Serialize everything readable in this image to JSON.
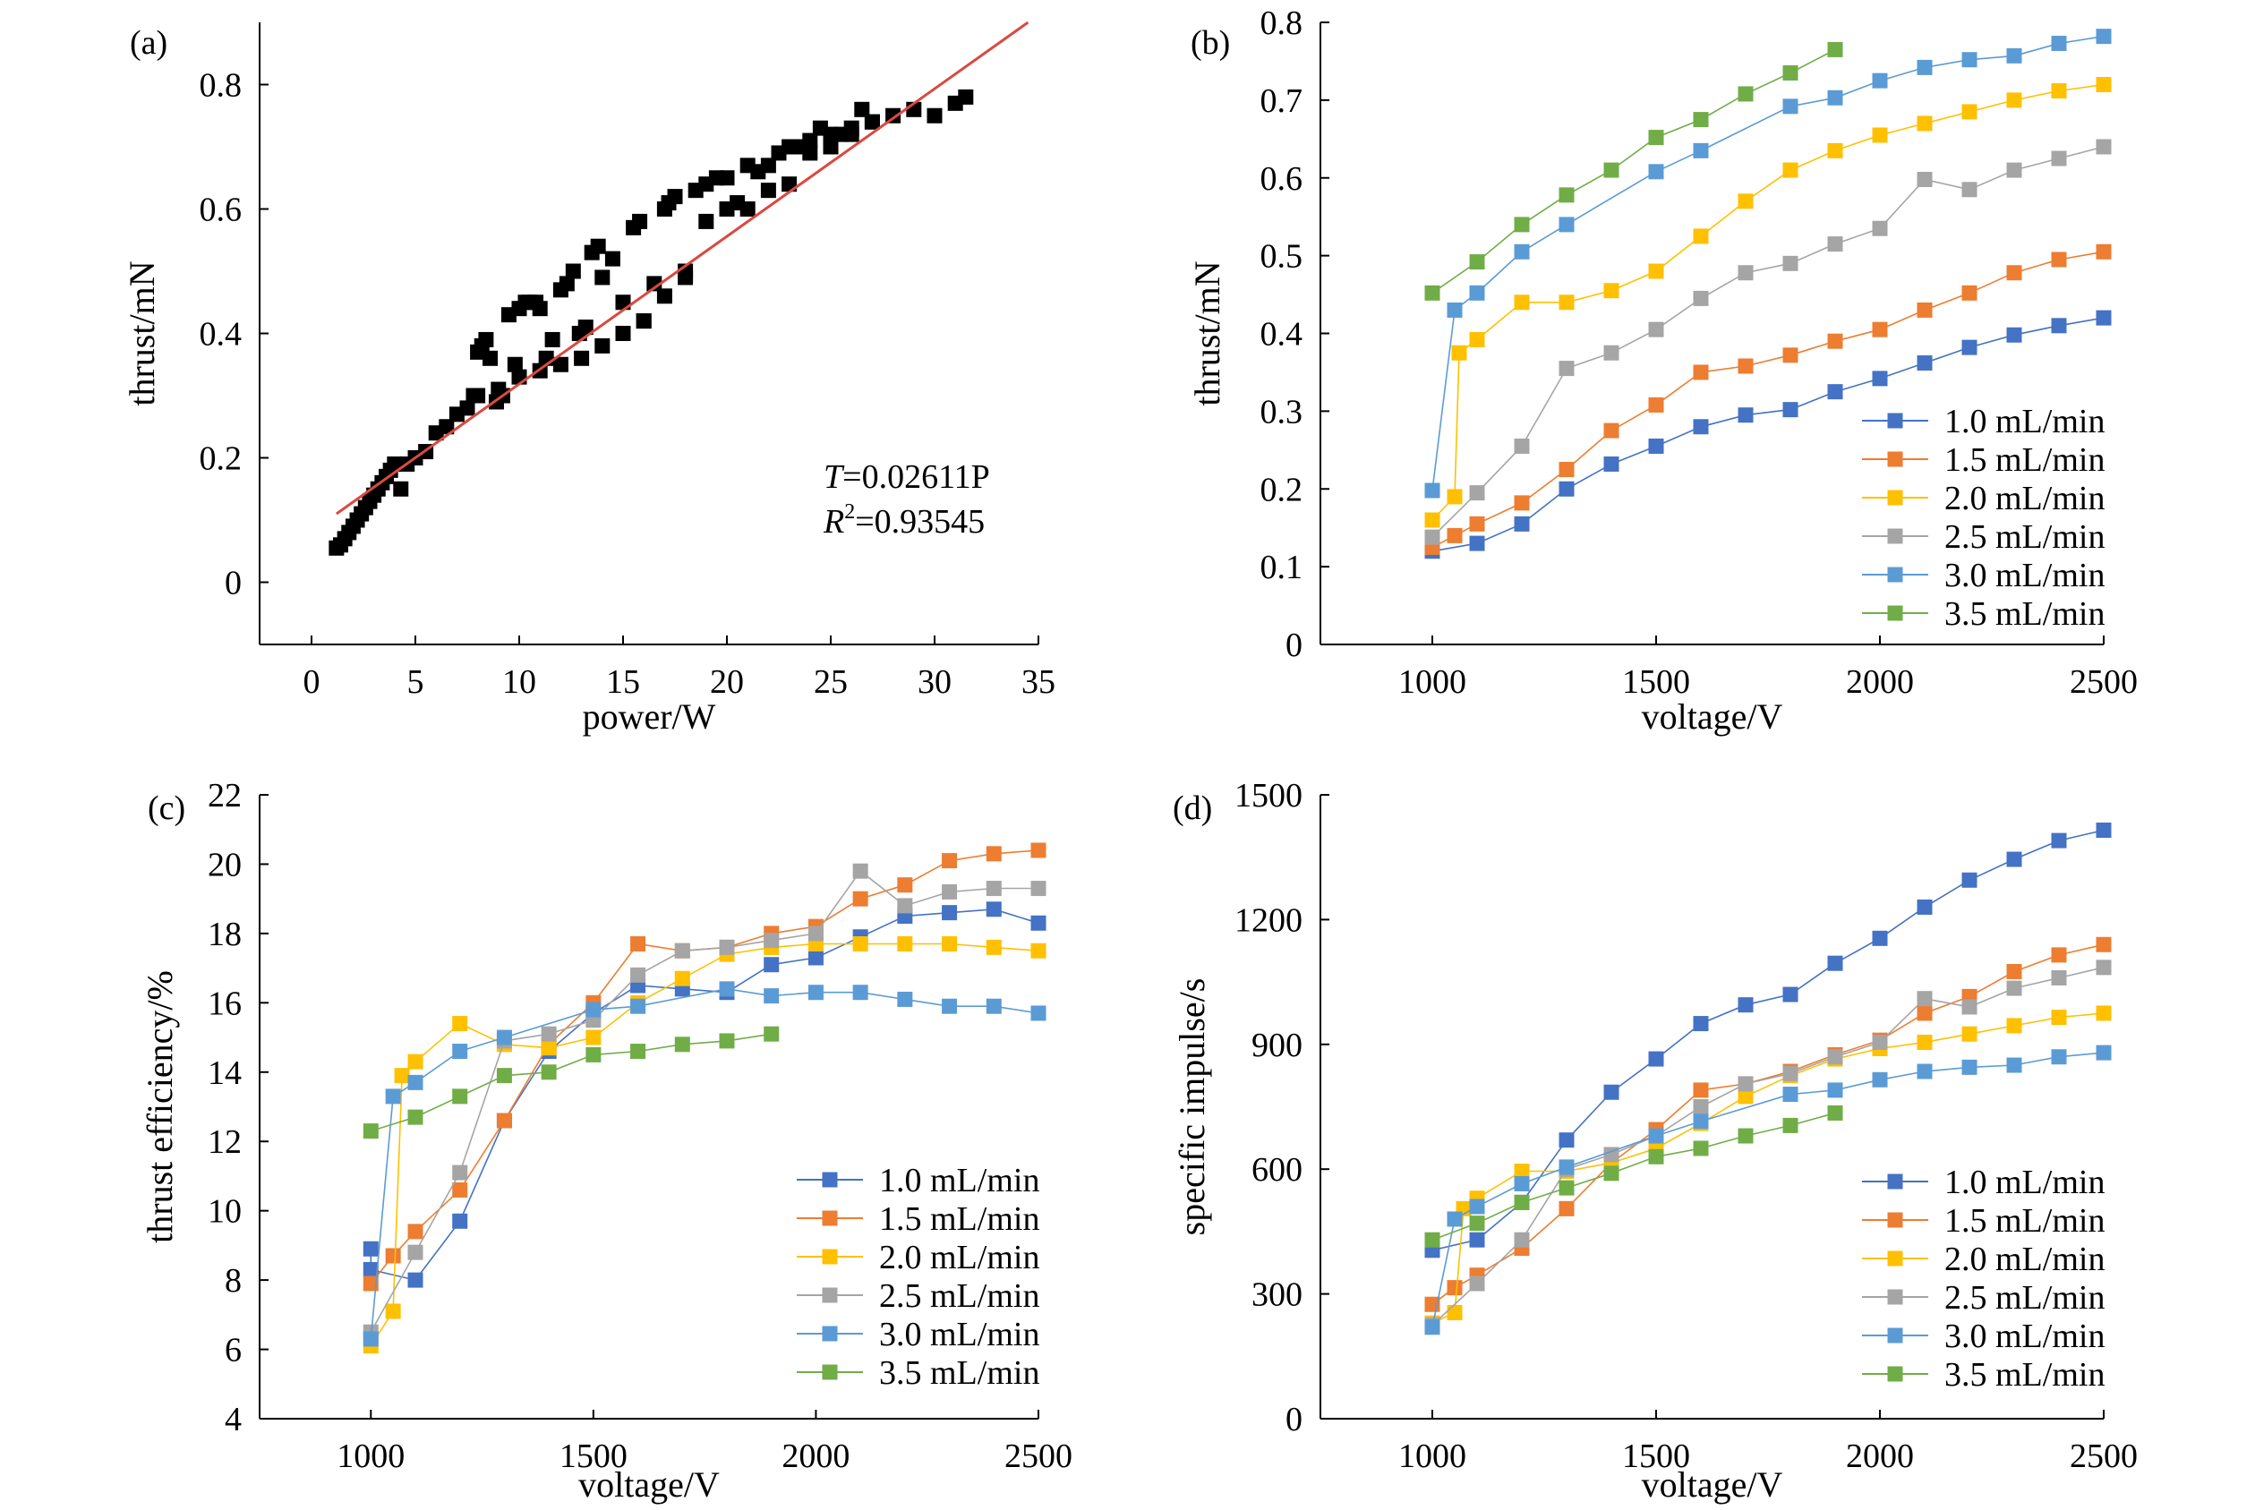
{
  "chart_data": [
    {
      "type": "scatter",
      "panel": "(a)",
      "xlabel": "power/W",
      "ylabel": "thrust/mN",
      "xlim": [
        -2.5,
        35
      ],
      "ylim": [
        -0.1,
        0.9
      ],
      "xticks": [
        0,
        5,
        10,
        15,
        20,
        25,
        30,
        35
      ],
      "yticks": [
        0,
        0.2,
        0.4,
        0.6,
        0.8
      ],
      "grid": false,
      "points": {
        "x": [
          1.2,
          1.4,
          1.6,
          1.8,
          2.0,
          2.2,
          2.4,
          2.6,
          2.8,
          3.0,
          3.2,
          3.4,
          3.6,
          3.8,
          4.0,
          4.3,
          4.6,
          5.0,
          5.5,
          6.0,
          6.5,
          7.0,
          7.5,
          7.8,
          8.0,
          8.2,
          8.4,
          8.6,
          8.9,
          9.2,
          9.5,
          9.8,
          10.0,
          10.3,
          10.5,
          10.8,
          11.0,
          11.3,
          11.6,
          12.0,
          12.3,
          12.6,
          12.9,
          13.2,
          13.5,
          13.8,
          14.0,
          14.5,
          15.0,
          15.5,
          15.8,
          16.0,
          16.5,
          17.0,
          17.2,
          17.5,
          18.0,
          18.5,
          19.0,
          19.5,
          20.0,
          20.5,
          21.0,
          21.5,
          22.0,
          22.5,
          23.0,
          23.5,
          24.0,
          24.5,
          25.0,
          25.5,
          26.0,
          26.5,
          27.0,
          28.0,
          29.0,
          30.0,
          31.0,
          31.5,
          8.0,
          9.0,
          10.0,
          11.0,
          12.0,
          13.0,
          14.0,
          15.0,
          16.0,
          17.0,
          18.0,
          19.0,
          20.0,
          21.0,
          22.0,
          23.0,
          24.0,
          25.0,
          26.0,
          27.0
        ],
        "y": [
          0.055,
          0.06,
          0.07,
          0.08,
          0.09,
          0.1,
          0.11,
          0.12,
          0.13,
          0.14,
          0.15,
          0.16,
          0.17,
          0.18,
          0.19,
          0.15,
          0.19,
          0.2,
          0.21,
          0.24,
          0.25,
          0.27,
          0.28,
          0.3,
          0.37,
          0.38,
          0.39,
          0.36,
          0.29,
          0.3,
          0.43,
          0.35,
          0.44,
          0.45,
          0.45,
          0.45,
          0.44,
          0.36,
          0.39,
          0.47,
          0.48,
          0.5,
          0.4,
          0.41,
          0.53,
          0.54,
          0.49,
          0.52,
          0.45,
          0.57,
          0.58,
          0.42,
          0.48,
          0.6,
          0.61,
          0.62,
          0.5,
          0.63,
          0.64,
          0.65,
          0.65,
          0.61,
          0.67,
          0.66,
          0.67,
          0.69,
          0.7,
          0.7,
          0.71,
          0.73,
          0.72,
          0.72,
          0.73,
          0.76,
          0.74,
          0.75,
          0.76,
          0.75,
          0.77,
          0.78,
          0.3,
          0.31,
          0.33,
          0.34,
          0.35,
          0.36,
          0.38,
          0.4,
          0.42,
          0.46,
          0.49,
          0.58,
          0.6,
          0.6,
          0.63,
          0.64,
          0.69,
          0.7,
          0.72,
          0.74
        ]
      },
      "fit": {
        "x": [
          1.2,
          34.5
        ],
        "y": [
          0.11,
          0.9
        ],
        "color": "#d94a3f"
      },
      "equation": {
        "T_sym": "T",
        "T_rest": "=0.02611P",
        "R_sym": "R",
        "R_sup": "2",
        "R_rest": "=0.93545"
      }
    },
    {
      "type": "line",
      "panel": "(b)",
      "xlabel": "voltage/V",
      "ylabel": "thrust/mN",
      "xlim": [
        750,
        2500
      ],
      "ylim": [
        0,
        0.8
      ],
      "xticks": [
        1000,
        1500,
        2000,
        2500
      ],
      "yticks": [
        0,
        0.1,
        0.2,
        0.3,
        0.4,
        0.5,
        0.6,
        0.7,
        0.8
      ],
      "grid": false,
      "legend_position": "bottom-right",
      "series": [
        {
          "name": "1.0 mL/min",
          "color": "#4472c4",
          "x": [
            1000,
            1100,
            1200,
            1300,
            1400,
            1500,
            1600,
            1700,
            1800,
            1900,
            2000,
            2100,
            2200,
            2300,
            2400,
            2500
          ],
          "y": [
            0.12,
            0.13,
            0.155,
            0.2,
            0.232,
            0.255,
            0.28,
            0.295,
            0.302,
            0.325,
            0.342,
            0.362,
            0.382,
            0.398,
            0.41,
            0.42
          ]
        },
        {
          "name": "1.5 mL/min",
          "color": "#ed7d31",
          "x": [
            1000,
            1050,
            1100,
            1200,
            1300,
            1400,
            1500,
            1600,
            1700,
            1800,
            1900,
            2000,
            2100,
            2200,
            2300,
            2400,
            2500
          ],
          "y": [
            0.125,
            0.14,
            0.155,
            0.182,
            0.225,
            0.275,
            0.308,
            0.35,
            0.358,
            0.372,
            0.39,
            0.405,
            0.43,
            0.452,
            0.478,
            0.495,
            0.505
          ]
        },
        {
          "name": "2.0 mL/min",
          "color": "#ffc000",
          "x": [
            1000,
            1050,
            1060,
            1100,
            1200,
            1300,
            1400,
            1500,
            1600,
            1700,
            1800,
            1900,
            2000,
            2100,
            2200,
            2300,
            2400,
            2500
          ],
          "y": [
            0.16,
            0.19,
            0.375,
            0.392,
            0.44,
            0.44,
            0.455,
            0.48,
            0.525,
            0.57,
            0.61,
            0.635,
            0.655,
            0.67,
            0.685,
            0.7,
            0.712,
            0.72
          ]
        },
        {
          "name": "2.5 mL/min",
          "color": "#a5a5a5",
          "x": [
            1000,
            1100,
            1200,
            1300,
            1400,
            1500,
            1600,
            1700,
            1800,
            1900,
            2000,
            2100,
            2200,
            2300,
            2400,
            2500
          ],
          "y": [
            0.138,
            0.195,
            0.255,
            0.355,
            0.375,
            0.405,
            0.445,
            0.478,
            0.49,
            0.515,
            0.535,
            0.598,
            0.585,
            0.61,
            0.625,
            0.64
          ]
        },
        {
          "name": "3.0 mL/min",
          "color": "#5b9bd5",
          "x": [
            1000,
            1050,
            1100,
            1200,
            1300,
            1500,
            1600,
            1800,
            1900,
            2000,
            2100,
            2200,
            2300,
            2400,
            2500
          ],
          "y": [
            0.198,
            0.43,
            0.452,
            0.505,
            0.54,
            0.608,
            0.635,
            0.692,
            0.703,
            0.725,
            0.742,
            0.752,
            0.757,
            0.773,
            0.782
          ]
        },
        {
          "name": "3.5 mL/min",
          "color": "#70ad47",
          "x": [
            1000,
            1100,
            1200,
            1300,
            1400,
            1500,
            1600,
            1700,
            1800,
            1900
          ],
          "y": [
            0.452,
            0.492,
            0.54,
            0.578,
            0.61,
            0.652,
            0.675,
            0.708,
            0.735,
            0.765
          ]
        }
      ]
    },
    {
      "type": "line",
      "panel": "(c)",
      "xlabel": "voltage/V",
      "ylabel": "thrust efficiency/%",
      "xlim": [
        750,
        2500
      ],
      "ylim": [
        4,
        22
      ],
      "xticks": [
        1000,
        1500,
        2000,
        2500
      ],
      "yticks": [
        4,
        6,
        8,
        10,
        12,
        14,
        16,
        18,
        20,
        22
      ],
      "grid": false,
      "legend_position": "bottom-right",
      "series": [
        {
          "name": "1.0 mL/min",
          "color": "#4472c4",
          "x": [
            1000,
            1000,
            1100,
            1200,
            1300,
            1400,
            1500,
            1600,
            1700,
            1800,
            1900,
            2000,
            2100,
            2200,
            2300,
            2400,
            2500
          ],
          "y": [
            8.9,
            8.3,
            8.0,
            9.7,
            12.6,
            14.6,
            15.7,
            16.5,
            16.4,
            16.3,
            17.1,
            17.3,
            17.9,
            18.5,
            18.6,
            18.7,
            18.3
          ]
        },
        {
          "name": "1.5 mL/min",
          "color": "#ed7d31",
          "x": [
            1000,
            1050,
            1100,
            1200,
            1300,
            1400,
            1500,
            1600,
            1700,
            1800,
            1900,
            2000,
            2100,
            2200,
            2300,
            2400,
            2500
          ],
          "y": [
            7.9,
            8.7,
            9.4,
            10.6,
            12.6,
            14.8,
            16.0,
            17.7,
            17.5,
            17.6,
            18.0,
            18.2,
            19.0,
            19.4,
            20.1,
            20.3,
            20.4
          ]
        },
        {
          "name": "2.0 mL/min",
          "color": "#ffc000",
          "x": [
            1000,
            1050,
            1070,
            1100,
            1200,
            1300,
            1400,
            1500,
            1600,
            1700,
            1800,
            1900,
            2000,
            2100,
            2200,
            2300,
            2400,
            2500
          ],
          "y": [
            6.1,
            7.1,
            13.9,
            14.3,
            15.4,
            14.8,
            14.7,
            15.0,
            16.0,
            16.7,
            17.4,
            17.6,
            17.7,
            17.7,
            17.7,
            17.7,
            17.6,
            17.5
          ]
        },
        {
          "name": "2.5 mL/min",
          "color": "#a5a5a5",
          "x": [
            1000,
            1100,
            1200,
            1300,
            1400,
            1500,
            1600,
            1700,
            1800,
            1900,
            2000,
            2100,
            2200,
            2300,
            2400,
            2500
          ],
          "y": [
            6.5,
            8.8,
            11.1,
            14.9,
            15.1,
            15.5,
            16.8,
            17.5,
            17.6,
            17.8,
            18.0,
            19.8,
            18.8,
            19.2,
            19.3,
            19.3
          ]
        },
        {
          "name": "3.0 mL/min",
          "color": "#5b9bd5",
          "x": [
            1000,
            1050,
            1100,
            1200,
            1300,
            1500,
            1600,
            1800,
            1900,
            2000,
            2100,
            2200,
            2300,
            2400,
            2500
          ],
          "y": [
            6.3,
            13.3,
            13.7,
            14.6,
            15.0,
            15.8,
            15.9,
            16.4,
            16.2,
            16.3,
            16.3,
            16.1,
            15.9,
            15.9,
            15.7
          ]
        },
        {
          "name": "3.5 mL/min",
          "color": "#70ad47",
          "x": [
            1000,
            1100,
            1200,
            1300,
            1400,
            1500,
            1600,
            1700,
            1800,
            1900
          ],
          "y": [
            12.3,
            12.7,
            13.3,
            13.9,
            14.0,
            14.5,
            14.6,
            14.8,
            14.9,
            15.1
          ]
        }
      ]
    },
    {
      "type": "line",
      "panel": "(d)",
      "xlabel": "voltage/V",
      "ylabel": "specific impulse/s",
      "xlim": [
        750,
        2500
      ],
      "ylim": [
        0,
        1500
      ],
      "xticks": [
        1000,
        1500,
        2000,
        2500
      ],
      "yticks": [
        0,
        300,
        600,
        900,
        1200,
        1500
      ],
      "grid": false,
      "legend_position": "bottom-right",
      "series": [
        {
          "name": "1.0 mL/min",
          "color": "#4472c4",
          "x": [
            1000,
            1100,
            1200,
            1300,
            1400,
            1500,
            1600,
            1700,
            1800,
            1900,
            2000,
            2100,
            2200,
            2300,
            2400,
            2500
          ],
          "y": [
            405,
            430,
            520,
            670,
            785,
            865,
            950,
            995,
            1020,
            1095,
            1155,
            1230,
            1295,
            1345,
            1390,
            1415
          ]
        },
        {
          "name": "1.5 mL/min",
          "color": "#ed7d31",
          "x": [
            1000,
            1050,
            1100,
            1200,
            1300,
            1400,
            1500,
            1600,
            1700,
            1800,
            1900,
            2000,
            2100,
            2200,
            2300,
            2400,
            2500
          ],
          "y": [
            275,
            315,
            345,
            410,
            505,
            615,
            695,
            790,
            805,
            835,
            875,
            910,
            975,
            1015,
            1075,
            1115,
            1140
          ]
        },
        {
          "name": "2.0 mL/min",
          "color": "#ffc000",
          "x": [
            1000,
            1050,
            1070,
            1100,
            1200,
            1300,
            1400,
            1500,
            1600,
            1700,
            1800,
            1900,
            2000,
            2100,
            2200,
            2300,
            2400,
            2500
          ],
          "y": [
            230,
            255,
            505,
            530,
            595,
            595,
            615,
            650,
            710,
            775,
            825,
            865,
            890,
            905,
            925,
            945,
            965,
            975
          ]
        },
        {
          "name": "2.5 mL/min",
          "color": "#a5a5a5",
          "x": [
            1000,
            1100,
            1200,
            1300,
            1400,
            1500,
            1600,
            1700,
            1800,
            1900,
            2000,
            2100,
            2200,
            2300,
            2400,
            2500
          ],
          "y": [
            225,
            325,
            430,
            600,
            635,
            680,
            750,
            805,
            830,
            870,
            905,
            1010,
            990,
            1035,
            1060,
            1085
          ]
        },
        {
          "name": "3.0 mL/min",
          "color": "#5b9bd5",
          "x": [
            1000,
            1050,
            1100,
            1200,
            1300,
            1500,
            1600,
            1800,
            1900,
            2000,
            2100,
            2200,
            2300,
            2400,
            2500
          ],
          "y": [
            220,
            480,
            510,
            565,
            605,
            680,
            715,
            780,
            790,
            815,
            835,
            845,
            850,
            870,
            880
          ]
        },
        {
          "name": "3.5 mL/min",
          "color": "#70ad47",
          "x": [
            1000,
            1100,
            1200,
            1300,
            1400,
            1500,
            1600,
            1700,
            1800,
            1900
          ],
          "y": [
            430,
            470,
            520,
            555,
            590,
            630,
            650,
            680,
            705,
            735
          ]
        }
      ]
    }
  ]
}
